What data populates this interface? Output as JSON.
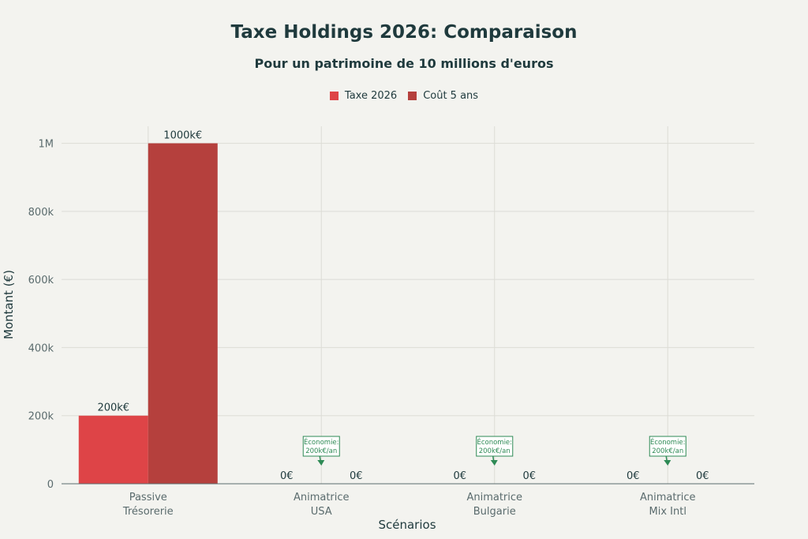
{
  "chart_data": {
    "type": "bar",
    "title": "Taxe Holdings 2026: Comparaison",
    "subtitle": "Pour un patrimoine de 10 millions d'euros",
    "xlabel": "Scénarios",
    "ylabel": "Montant (€)",
    "categories": [
      [
        "Passive",
        "Trésorerie"
      ],
      [
        "Animatrice",
        "USA"
      ],
      [
        "Animatrice",
        "Bulgarie"
      ],
      [
        "Animatrice",
        "Mix Intl"
      ]
    ],
    "series": [
      {
        "name": "Taxe 2026",
        "color": "#de4447",
        "values": [
          200000,
          0,
          0,
          0
        ],
        "labels": [
          "200k€",
          "0€",
          "0€",
          "0€"
        ]
      },
      {
        "name": "Coût 5 ans",
        "color": "#b5403d",
        "values": [
          1000000,
          0,
          0,
          0
        ],
        "labels": [
          "1000k€",
          "0€",
          "0€",
          "0€"
        ]
      }
    ],
    "ylim": [
      0,
      1050000
    ],
    "yticks": [
      0,
      200000,
      400000,
      600000,
      800000,
      1000000
    ],
    "ytick_labels": [
      "0",
      "200k",
      "400k",
      "600k",
      "800k",
      "1M"
    ],
    "grid": true,
    "legend_position": "top-center",
    "annotations": [
      {
        "category_index": 1,
        "lines": [
          "Économie:",
          "200k€/an"
        ]
      },
      {
        "category_index": 2,
        "lines": [
          "Économie:",
          "200k€/an"
        ]
      },
      {
        "category_index": 3,
        "lines": [
          "Économie:",
          "200k€/an"
        ]
      }
    ],
    "annotation_color": "#2e8a55"
  }
}
